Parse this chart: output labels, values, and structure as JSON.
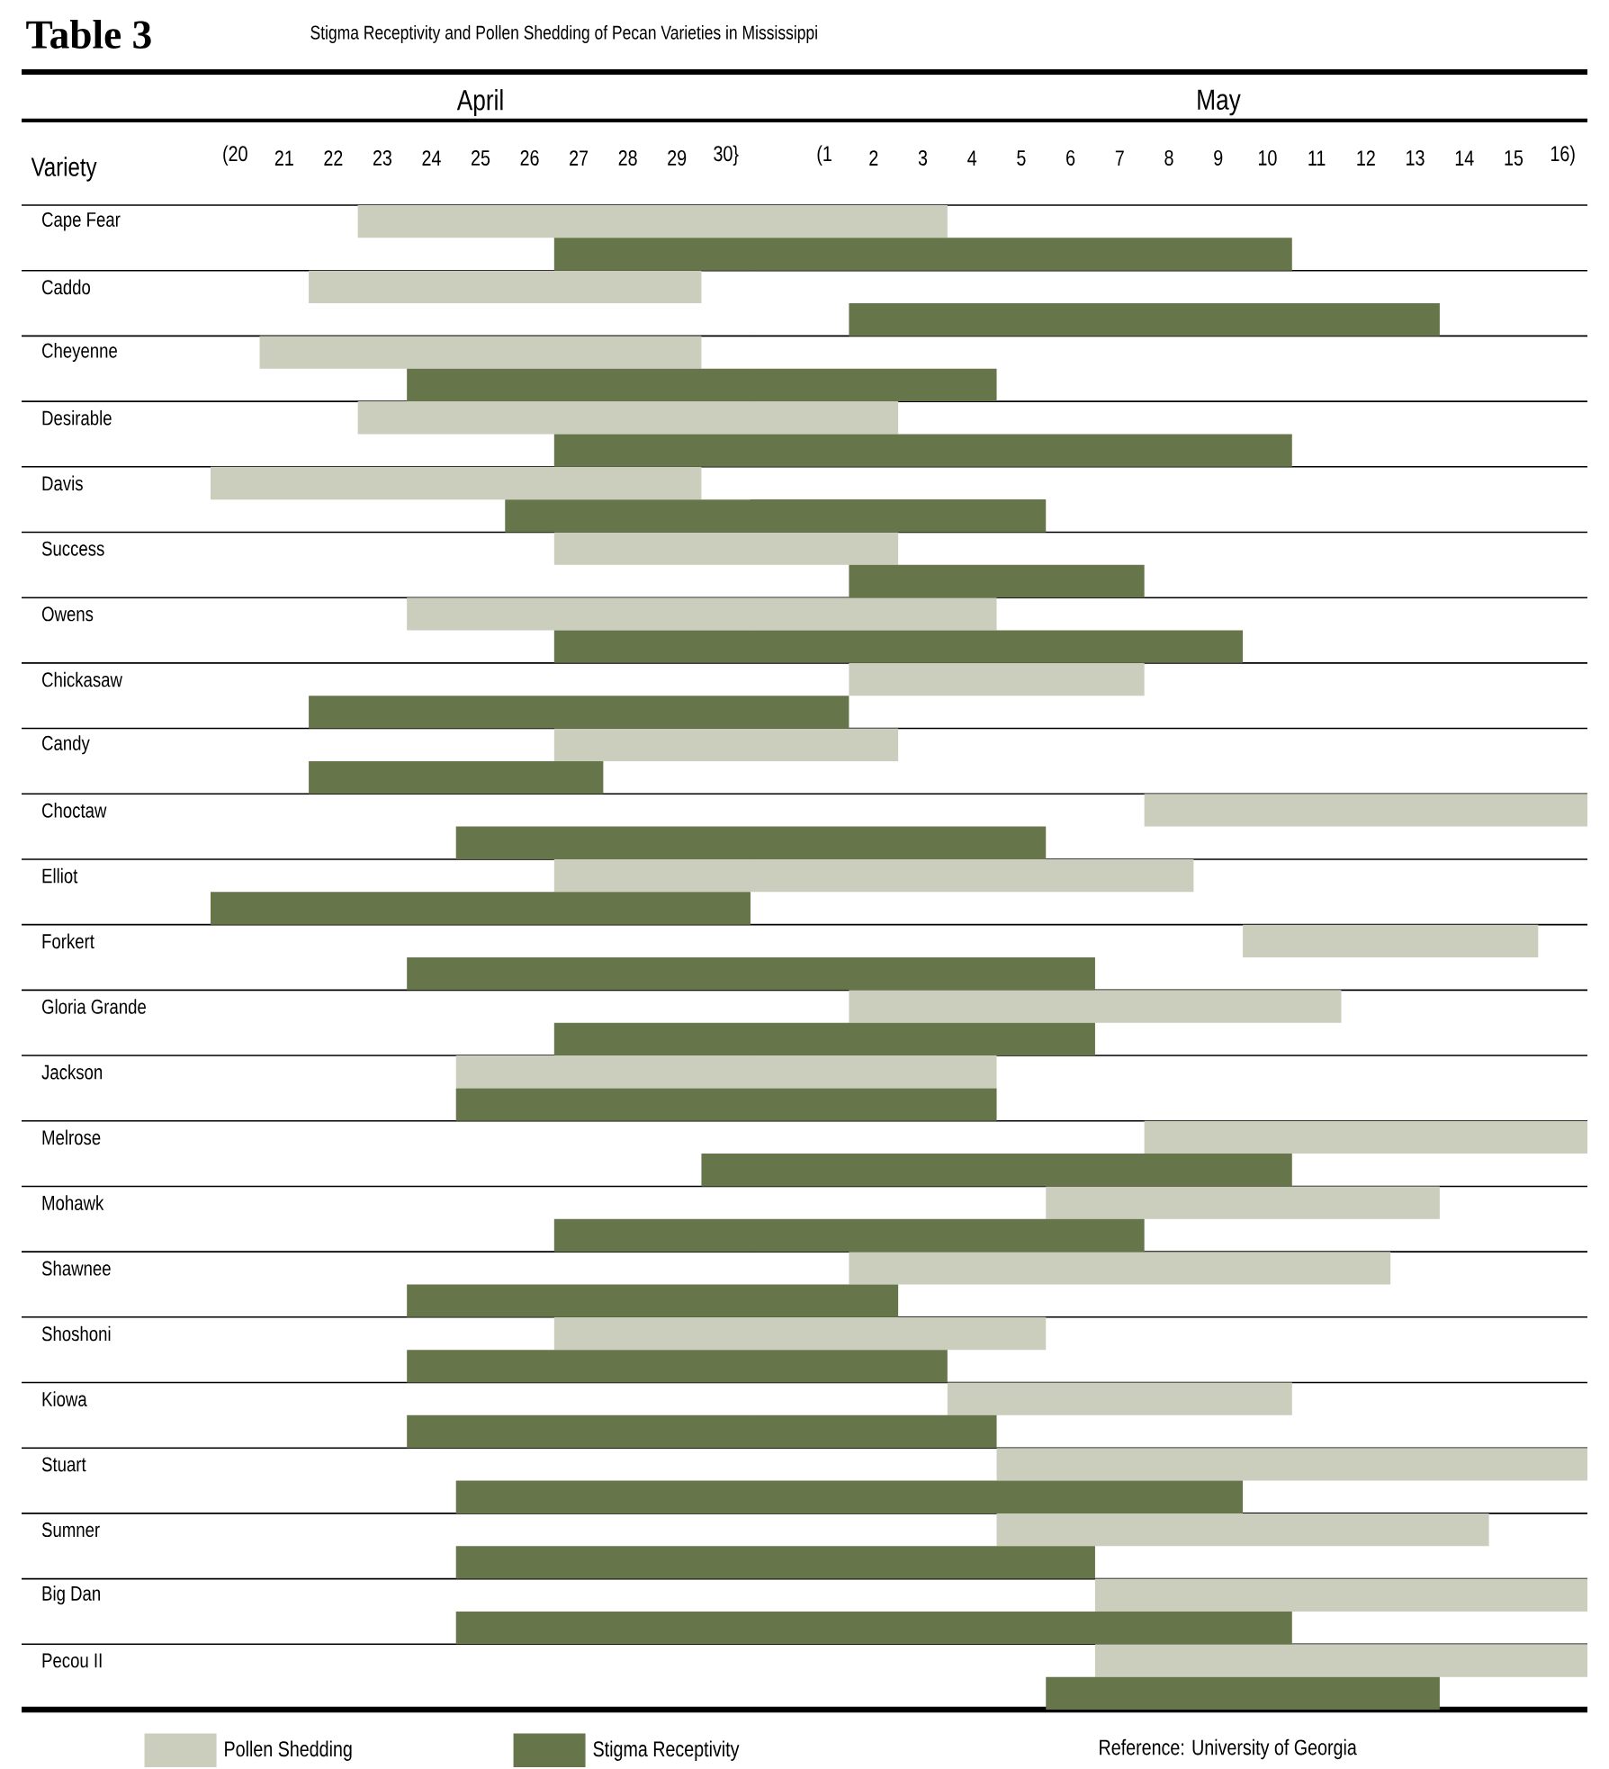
{
  "chart_data": [
    {
      "type": "bar",
      "orientation": "horizontal",
      "title": "Table 3",
      "subtitle": "Stigma Receptivity and Pollen Shedding of Pecan Varieties in Mississippi",
      "ylabel": "Variety",
      "x2label": "April",
      "categories": [
        "Cape Fear",
        "Caddo",
        "Cheyenne",
        "Desirable",
        "Davis",
        "Success",
        "Owens",
        "Chickasaw",
        "Candy",
        "Choctaw",
        "Elliot",
        "Forkert",
        "Gloria Grande",
        "Jackson",
        "Melrose",
        "Mohawk",
        "Shawnee",
        "Shoshoni",
        "Kiowa",
        "Stuart",
        "Sumner",
        "Big Dan",
        "Pecou II"
      ],
      "series": [
        {
          "name": "Pollen Shedding",
          "color": "#cbcdbd",
          "base": [
            22.5,
            21.5,
            20.5,
            22.5,
            19.5,
            26.5,
            23.5,
            null,
            26.5,
            null,
            26.5,
            null,
            null,
            24.5,
            null,
            null,
            null,
            26.5,
            null,
            null,
            null,
            null,
            null
          ],
          "values": [
            8,
            8,
            9,
            8,
            10,
            4,
            7,
            null,
            4,
            null,
            4,
            null,
            null,
            6,
            null,
            null,
            null,
            4,
            null,
            null,
            null,
            null,
            null
          ]
        },
        {
          "name": "Stigma Receptivity",
          "color": "#66754a",
          "base": [
            26.5,
            null,
            23.5,
            26.5,
            25.5,
            null,
            26.5,
            21.5,
            21.5,
            24.5,
            19.5,
            23.5,
            26.5,
            24.5,
            29.5,
            26.5,
            23.5,
            23.5,
            23.5,
            24.5,
            24.5,
            24.5,
            null
          ],
          "values": [
            4,
            null,
            7,
            4,
            5,
            null,
            4,
            9,
            6,
            6,
            11,
            7,
            4,
            6,
            1,
            4,
            7,
            7,
            7,
            6,
            6,
            6,
            null
          ]
        }
      ],
      "xlim": [
        19.5,
        30.5
      ],
      "xticks": [
        {
          "value": 20,
          "label": "(20"
        },
        21,
        22,
        23,
        24,
        25,
        26,
        27,
        28,
        29,
        {
          "value": 30,
          "label": "30}"
        }
      ],
      "grid": "y",
      "legend": "bottom",
      "annotations": [
        "Reference: University of Georgia"
      ]
    },
    {
      "type": "bar",
      "orientation": "horizontal",
      "x2label": "May",
      "categories": [
        null,
        null,
        null,
        null,
        null,
        null,
        null,
        null,
        null,
        null,
        null,
        null,
        null,
        null,
        null,
        null,
        null,
        null,
        null,
        null,
        null,
        null,
        null
      ],
      "series": [
        {
          "color": "#cbcdbd",
          "base": [
            -0.5,
            null,
            null,
            -0.5,
            null,
            -0.5,
            -0.5,
            1.5,
            -0.5,
            7.5,
            -0.5,
            9.5,
            1.5,
            -0.5,
            7.5,
            5.5,
            1.5,
            -0.5,
            3.5,
            4.5,
            4.5,
            6.5,
            6.5
          ],
          "values": [
            4,
            null,
            null,
            3,
            null,
            3,
            5,
            6,
            3,
            9,
            9,
            6,
            10,
            5,
            9,
            8,
            11,
            6,
            7,
            12,
            10,
            10,
            10
          ]
        },
        {
          "color": "#66754a",
          "base": [
            -0.5,
            1.5,
            -0.5,
            -0.5,
            -0.5,
            1.5,
            -0.5,
            -0.5,
            null,
            -0.5,
            null,
            -0.5,
            -0.5,
            -0.5,
            -0.5,
            -0.5,
            -0.5,
            -0.5,
            -0.5,
            -0.5,
            -0.5,
            -0.5,
            5.5
          ],
          "values": [
            11,
            12,
            5,
            11,
            6,
            6,
            10,
            2,
            null,
            6,
            null,
            7,
            7,
            5,
            11,
            8,
            3,
            4,
            5,
            10,
            7,
            11,
            8
          ]
        }
      ],
      "xlim": [
        -0.5,
        16.5
      ],
      "xticks": [
        {
          "value": 1,
          "label": "(1"
        },
        2,
        3,
        4,
        5,
        6,
        7,
        8,
        9,
        10,
        11,
        12,
        13,
        14,
        15,
        {
          "value": 16,
          "label": "16)"
        }
      ],
      "grid": "y",
      "tick_labels": "x"
    }
  ]
}
